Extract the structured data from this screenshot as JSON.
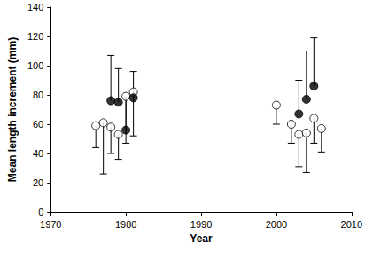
{
  "chart_data": {
    "type": "scatter",
    "x_label": "Year",
    "y_label": "Mean length increment (mm)",
    "xlim": [
      1970,
      2010
    ],
    "xticks": [
      1970,
      1980,
      1990,
      2000,
      2010
    ],
    "ylim": [
      0,
      140
    ],
    "yticks": [
      0,
      20,
      40,
      60,
      80,
      100,
      120,
      140
    ],
    "grid": false,
    "series": [
      {
        "color": "#000000",
        "marker": "circle-open",
        "x": [
          1976,
          1977,
          1978,
          1979,
          1980,
          1981,
          2000,
          2002,
          2003,
          2004,
          2005,
          2006
        ],
        "values": [
          59,
          61,
          58,
          53,
          79,
          82,
          73,
          60,
          53,
          54,
          64,
          57
        ],
        "error_minus": [
          15,
          35,
          18,
          17,
          32,
          30,
          13,
          13,
          22,
          27,
          17,
          16
        ]
      },
      {
        "color": "#000000",
        "marker": "circle",
        "x": [
          1978,
          1979,
          1980,
          1981,
          2003,
          2004,
          2005
        ],
        "values": [
          76,
          75,
          56,
          78,
          67,
          77,
          86
        ],
        "error_plus": [
          31,
          23,
          22,
          18,
          23,
          33,
          33
        ]
      }
    ]
  }
}
